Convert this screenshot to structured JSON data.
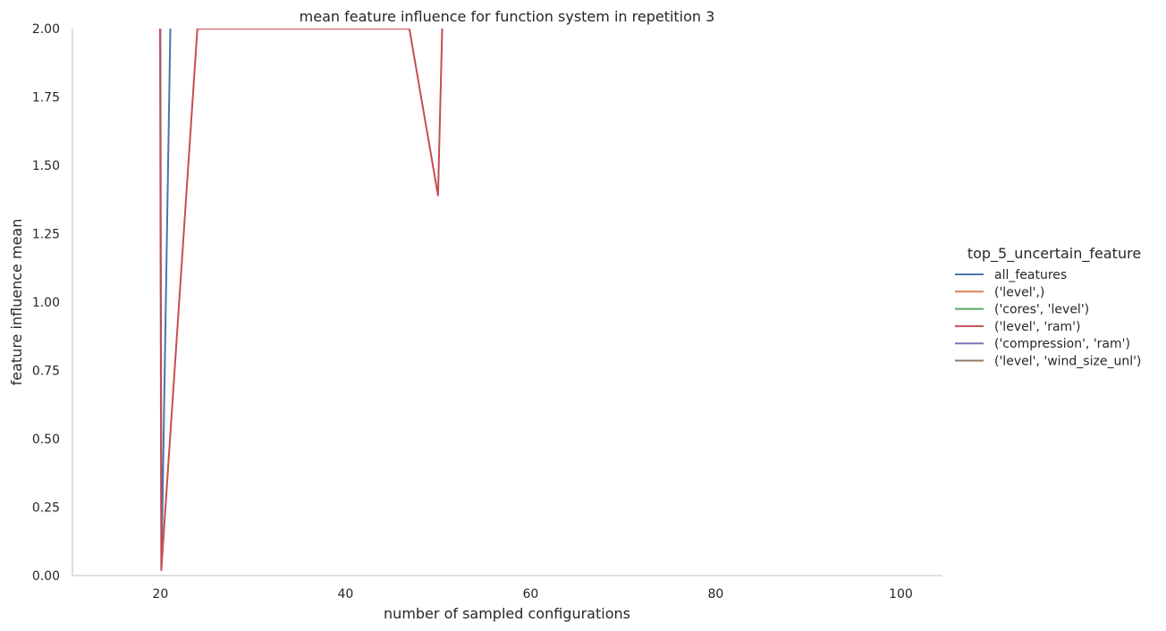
{
  "chart_data": {
    "type": "line",
    "title": "mean feature influence for function system in repetition 3",
    "xlabel": "number of sampled configurations",
    "ylabel": "feature influence mean",
    "xlim": [
      10.5,
      104.5
    ],
    "ylim": [
      0,
      2
    ],
    "xticks": [
      20,
      40,
      60,
      80,
      100
    ],
    "yticks": [
      "0.00",
      "0.25",
      "0.50",
      "0.75",
      "1.00",
      "1.25",
      "1.50",
      "1.75",
      "2.00"
    ],
    "grid": false,
    "legend": {
      "title": "top_5_uncertain_feature",
      "placement": "right"
    },
    "series": [
      {
        "name": "all_features",
        "color": "#4c72b0",
        "x": [
          20,
          20.12,
          21.08
        ],
        "y": [
          2.0,
          0.03,
          2.0
        ]
      },
      {
        "name": "('level',)",
        "color": "#dd8452",
        "x": [],
        "y": []
      },
      {
        "name": "('cores', 'level')",
        "color": "#55a868",
        "x": [],
        "y": []
      },
      {
        "name": "('level', 'ram')",
        "color": "#c44e52",
        "x": [
          19.97,
          20.1,
          24.0,
          46.9,
          50.0,
          50.45
        ],
        "y": [
          2.0,
          0.02,
          2.0,
          2.0,
          1.39,
          2.0
        ]
      },
      {
        "name": "('compression', 'ram')",
        "color": "#8172b3",
        "x": [],
        "y": []
      },
      {
        "name": "('level', 'wind_size_unl')",
        "color": "#937860",
        "x": [],
        "y": []
      }
    ]
  }
}
